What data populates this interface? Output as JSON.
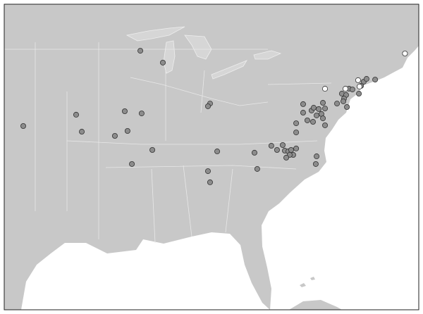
{
  "map_data": {
    "type": "point map",
    "series": [
      {
        "color": "#8c8c8c",
        "points": [
          [
            -87.38,
            42.55
          ],
          [
            -85.99,
            41.73
          ],
          [
            -94.6,
            37.36
          ],
          [
            -91.34,
            38.14
          ],
          [
            -90.99,
            36.97
          ],
          [
            -88.95,
            36.68
          ],
          [
            -88.34,
            38.38
          ],
          [
            -87.3,
            38.23
          ],
          [
            -88.17,
            37.02
          ],
          [
            -86.64,
            35.71
          ],
          [
            -87.9,
            34.74
          ],
          [
            -83.08,
            38.91
          ],
          [
            -83.21,
            38.72
          ],
          [
            -82.64,
            35.61
          ],
          [
            -83.21,
            34.25
          ],
          [
            -83.08,
            33.48
          ],
          [
            -80.34,
            35.52
          ],
          [
            -80.17,
            34.4
          ],
          [
            -79.3,
            36.0
          ],
          [
            -78.95,
            35.71
          ],
          [
            -78.6,
            36.05
          ],
          [
            -78.47,
            35.66
          ],
          [
            -78.25,
            35.61
          ],
          [
            -78.08,
            35.71
          ],
          [
            -77.95,
            35.37
          ],
          [
            -78.17,
            35.37
          ],
          [
            -77.77,
            35.81
          ],
          [
            -78.38,
            35.18
          ],
          [
            -76.51,
            35.27
          ],
          [
            -76.56,
            34.74
          ],
          [
            -77.77,
            36.92
          ],
          [
            -77.77,
            37.55
          ],
          [
            -77.34,
            38.87
          ],
          [
            -77.08,
            37.75
          ],
          [
            -77.34,
            38.28
          ],
          [
            -76.82,
            38.43
          ],
          [
            -76.69,
            38.62
          ],
          [
            -76.38,
            38.53
          ],
          [
            -76.51,
            38.09
          ],
          [
            -76.12,
            38.96
          ],
          [
            -76.21,
            38.19
          ],
          [
            -75.99,
            37.41
          ],
          [
            -76.73,
            37.65
          ],
          [
            -75.99,
            38.57
          ],
          [
            -76.12,
            37.89
          ],
          [
            -75.25,
            38.91
          ],
          [
            -74.95,
            39.59
          ],
          [
            -74.69,
            39.5
          ],
          [
            -74.82,
            39.25
          ],
          [
            -74.64,
            38.67
          ],
          [
            -74.51,
            39.93
          ],
          [
            -74.3,
            39.88
          ],
          [
            -73.9,
            39.59
          ],
          [
            -73.77,
            40.13
          ],
          [
            -73.6,
            40.42
          ],
          [
            -73.43,
            40.61
          ],
          [
            -72.9,
            40.56
          ],
          [
            -74.86,
            39.06
          ]
        ]
      },
      {
        "color": "#ffffff",
        "points": [
          [
            -75.99,
            39.93
          ],
          [
            -74.73,
            39.93
          ],
          [
            -73.95,
            40.52
          ],
          [
            -73.86,
            40.08
          ],
          [
            -71.06,
            42.36
          ]
        ]
      }
    ]
  }
}
